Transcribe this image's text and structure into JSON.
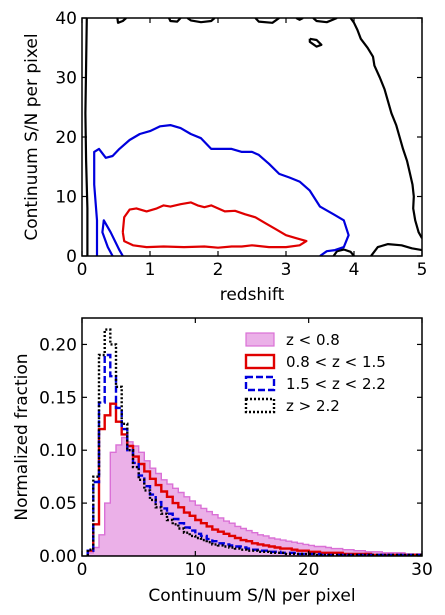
{
  "chart_data": [
    {
      "type": "contour",
      "xlabel": "redshift",
      "ylabel": "Continuum S/N per pixel",
      "xlim": [
        0,
        5
      ],
      "ylim": [
        0,
        40
      ],
      "xticks": [
        "0",
        "1",
        "2",
        "3",
        "4",
        "5"
      ],
      "yticks": [
        "0",
        "10",
        "20",
        "30",
        "40"
      ],
      "tick_direction": "in",
      "contours": [
        {
          "name": "",
          "color": "#000000",
          "paths": [
            [
              [
                0.08,
                0
              ],
              [
                0.08,
                8
              ],
              [
                0.06,
                16
              ],
              [
                0.05,
                24
              ],
              [
                0.06,
                32
              ],
              [
                0.07,
                40
              ]
            ],
            [
              [
                0.52,
                40
              ],
              [
                0.53,
                39.2
              ],
              [
                0.6,
                39.5
              ],
              [
                0.65,
                40
              ]
            ],
            [
              [
                1.28,
                40
              ],
              [
                1.3,
                39.5
              ],
              [
                1.4,
                39.4
              ],
              [
                1.45,
                40
              ]
            ],
            [
              [
                1.55,
                40
              ],
              [
                1.6,
                39.6
              ],
              [
                1.75,
                39.3
              ],
              [
                1.9,
                39.5
              ],
              [
                1.95,
                40
              ]
            ],
            [
              [
                2.55,
                40
              ],
              [
                2.6,
                39.4
              ],
              [
                2.8,
                39.2
              ],
              [
                2.9,
                40
              ]
            ],
            [
              [
                3.15,
                40
              ],
              [
                3.2,
                39.7
              ],
              [
                3.25,
                40
              ]
            ],
            [
              [
                3.4,
                40
              ],
              [
                3.45,
                39.5
              ],
              [
                3.6,
                39.3
              ],
              [
                3.75,
                40
              ]
            ],
            [
              [
                3.95,
                40
              ],
              [
                4.0,
                39.2
              ],
              [
                4.05,
                38.0
              ],
              [
                4.1,
                36.5
              ],
              [
                4.2,
                35.0
              ],
              [
                4.28,
                33.5
              ],
              [
                4.3,
                32.0
              ],
              [
                4.38,
                30.0
              ],
              [
                4.45,
                28.0
              ],
              [
                4.5,
                26.0
              ],
              [
                4.55,
                24.0
              ],
              [
                4.62,
                22.0
              ],
              [
                4.67,
                20.0
              ],
              [
                4.72,
                18.0
              ],
              [
                4.78,
                16.0
              ],
              [
                4.82,
                14.0
              ],
              [
                4.86,
                12.0
              ],
              [
                4.88,
                10.0
              ],
              [
                4.87,
                8.0
              ],
              [
                4.9,
                6.0
              ],
              [
                4.95,
                4.0
              ],
              [
                5.0,
                3.0
              ]
            ],
            [
              [
                3.35,
                36.5
              ],
              [
                3.45,
                36.3
              ],
              [
                3.52,
                35.5
              ],
              [
                3.45,
                35.2
              ],
              [
                3.35,
                36.0
              ],
              [
                3.35,
                36.5
              ]
            ],
            [
              [
                4.25,
                0
              ],
              [
                4.35,
                1.5
              ],
              [
                4.5,
                2.0
              ],
              [
                4.7,
                1.8
              ],
              [
                4.85,
                1.3
              ],
              [
                5.0,
                1.0
              ]
            ],
            [
              [
                3.7,
                0
              ],
              [
                3.75,
                0.8
              ],
              [
                3.85,
                1.1
              ],
              [
                3.95,
                0.7
              ],
              [
                4.0,
                0
              ]
            ]
          ]
        },
        {
          "name": "",
          "color": "#0000dd",
          "paths": [
            [
              [
                0.22,
                0
              ],
              [
                0.22,
                6.0
              ],
              [
                0.18,
                12.0
              ],
              [
                0.18,
                17.5
              ],
              [
                0.25,
                18.0
              ],
              [
                0.35,
                16.5
              ],
              [
                0.45,
                16.8
              ],
              [
                0.55,
                18.0
              ],
              [
                0.7,
                19.5
              ],
              [
                0.85,
                20.5
              ],
              [
                1.0,
                21.0
              ],
              [
                1.15,
                21.8
              ],
              [
                1.3,
                22.0
              ],
              [
                1.45,
                21.5
              ],
              [
                1.6,
                20.5
              ],
              [
                1.75,
                19.8
              ],
              [
                1.9,
                18.0
              ],
              [
                2.05,
                18.0
              ],
              [
                2.2,
                18.0
              ],
              [
                2.35,
                17.5
              ],
              [
                2.5,
                17.5
              ],
              [
                2.6,
                17.0
              ],
              [
                2.75,
                15.5
              ],
              [
                2.9,
                13.8
              ],
              [
                3.05,
                13.2
              ],
              [
                3.2,
                12.5
              ],
              [
                3.35,
                11.0
              ],
              [
                3.5,
                8.3
              ],
              [
                3.7,
                7.0
              ],
              [
                3.85,
                6.0
              ],
              [
                3.92,
                3.5
              ],
              [
                3.85,
                1.5
              ],
              [
                3.72,
                1.0
              ],
              [
                3.6,
                0.8
              ],
              [
                3.5,
                0
              ]
            ],
            [
              [
                0.45,
                0
              ],
              [
                0.38,
                1.5
              ],
              [
                0.3,
                4.0
              ],
              [
                0.32,
                6.0
              ],
              [
                0.42,
                4.0
              ],
              [
                0.55,
                1.0
              ],
              [
                0.6,
                0
              ]
            ]
          ]
        },
        {
          "name": "",
          "color": "#e00000",
          "paths": [
            [
              [
                0.6,
                4.0
              ],
              [
                0.62,
                6.5
              ],
              [
                0.7,
                7.8
              ],
              [
                0.8,
                8.0
              ],
              [
                0.95,
                7.5
              ],
              [
                1.1,
                8.0
              ],
              [
                1.2,
                8.5
              ],
              [
                1.3,
                8.3
              ],
              [
                1.45,
                8.7
              ],
              [
                1.6,
                9.0
              ],
              [
                1.7,
                8.5
              ],
              [
                1.8,
                8.2
              ],
              [
                1.9,
                8.5
              ],
              [
                2.0,
                8.0
              ],
              [
                2.1,
                7.5
              ],
              [
                2.25,
                7.6
              ],
              [
                2.4,
                7.0
              ],
              [
                2.55,
                6.5
              ],
              [
                2.7,
                5.5
              ],
              [
                2.85,
                4.5
              ],
              [
                3.0,
                3.5
              ],
              [
                3.15,
                3.0
              ],
              [
                3.3,
                2.5
              ],
              [
                3.2,
                1.8
              ],
              [
                3.0,
                1.5
              ],
              [
                2.75,
                1.5
              ],
              [
                2.5,
                1.8
              ],
              [
                2.35,
                1.6
              ],
              [
                2.2,
                1.6
              ],
              [
                2.0,
                1.4
              ],
              [
                1.8,
                1.6
              ],
              [
                1.5,
                1.5
              ],
              [
                1.2,
                1.6
              ],
              [
                0.95,
                1.5
              ],
              [
                0.75,
                1.8
              ],
              [
                0.62,
                2.5
              ],
              [
                0.6,
                4.0
              ]
            ]
          ]
        }
      ]
    },
    {
      "type": "histogram",
      "xlabel": "Continuum S/N per pixel",
      "ylabel": "Normalized fraction",
      "xlim": [
        0,
        30
      ],
      "ylim": [
        0,
        0.225
      ],
      "xticks": [
        "0",
        "10",
        "20",
        "30"
      ],
      "yticks": [
        "0.00",
        "0.05",
        "0.10",
        "0.15",
        "0.20"
      ],
      "tick_direction": "in",
      "bin_start": 0.5,
      "bin_width": 0.5,
      "legend_position": "top-right",
      "series": [
        {
          "name": "z < 0.8",
          "style": "filled",
          "color": "#da70d6",
          "values": [
            0.003,
            0.008,
            0.02,
            0.05,
            0.098,
            0.105,
            0.112,
            0.108,
            0.104,
            0.098,
            0.09,
            0.083,
            0.078,
            0.072,
            0.068,
            0.064,
            0.06,
            0.056,
            0.052,
            0.048,
            0.045,
            0.042,
            0.039,
            0.036,
            0.033,
            0.031,
            0.028,
            0.026,
            0.024,
            0.022,
            0.02,
            0.019,
            0.017,
            0.016,
            0.015,
            0.014,
            0.013,
            0.012,
            0.011,
            0.01,
            0.009,
            0.009,
            0.008,
            0.007,
            0.007,
            0.006,
            0.006,
            0.005,
            0.005,
            0.004,
            0.004,
            0.004,
            0.003,
            0.003,
            0.003,
            0.003,
            0.002,
            0.002,
            0.002
          ]
        },
        {
          "name": "0.8 < z < 1.5",
          "style": "solid",
          "color": "#e00000",
          "values": [
            0.005,
            0.03,
            0.12,
            0.133,
            0.144,
            0.127,
            0.115,
            0.104,
            0.094,
            0.087,
            0.08,
            0.073,
            0.067,
            0.061,
            0.056,
            0.05,
            0.046,
            0.041,
            0.038,
            0.034,
            0.031,
            0.028,
            0.025,
            0.023,
            0.021,
            0.019,
            0.017,
            0.015,
            0.014,
            0.012,
            0.011,
            0.01,
            0.009,
            0.008,
            0.007,
            0.007,
            0.006,
            0.005,
            0.005,
            0.004,
            0.004,
            0.003,
            0.003,
            0.003,
            0.003,
            0.002,
            0.002,
            0.002,
            0.002,
            0.002,
            0.001,
            0.001,
            0.001,
            0.001,
            0.001,
            0.001,
            0.001,
            0.001,
            0.001
          ]
        },
        {
          "name": "1.5 < z < 2.2",
          "style": "dashed",
          "color": "#0000dd",
          "values": [
            0.005,
            0.07,
            0.145,
            0.19,
            0.17,
            0.14,
            0.12,
            0.1,
            0.088,
            0.076,
            0.066,
            0.058,
            0.051,
            0.045,
            0.04,
            0.035,
            0.031,
            0.027,
            0.024,
            0.021,
            0.019,
            0.016,
            0.014,
            0.012,
            0.011,
            0.01,
            0.009,
            0.008,
            0.007,
            0.006,
            0.005,
            0.005,
            0.004,
            0.004,
            0.003,
            0.003,
            0.003,
            0.002,
            0.002,
            0.002,
            0.002,
            0.001,
            0.001,
            0.001,
            0.001,
            0.001,
            0.001,
            0.001,
            0.001,
            0.001,
            0.001,
            0.001,
            0.001,
            0.001,
            0.001,
            0.001,
            0.001,
            0.001,
            0.001
          ]
        },
        {
          "name": "z > 2.2",
          "style": "dotted",
          "color": "#000000",
          "values": [
            0.006,
            0.075,
            0.19,
            0.214,
            0.2,
            0.16,
            0.125,
            0.1,
            0.084,
            0.072,
            0.062,
            0.053,
            0.046,
            0.04,
            0.034,
            0.03,
            0.026,
            0.022,
            0.019,
            0.017,
            0.015,
            0.013,
            0.011,
            0.01,
            0.009,
            0.008,
            0.007,
            0.006,
            0.005,
            0.005,
            0.004,
            0.004,
            0.003,
            0.003,
            0.003,
            0.002,
            0.002,
            0.002,
            0.002,
            0.002,
            0.001,
            0.001,
            0.001,
            0.001,
            0.001,
            0.001,
            0.001,
            0.001,
            0.001,
            0.001,
            0.001,
            0.001,
            0.001,
            0.001,
            0.001,
            0.001,
            0.001,
            0.001,
            0.001
          ]
        }
      ]
    }
  ]
}
